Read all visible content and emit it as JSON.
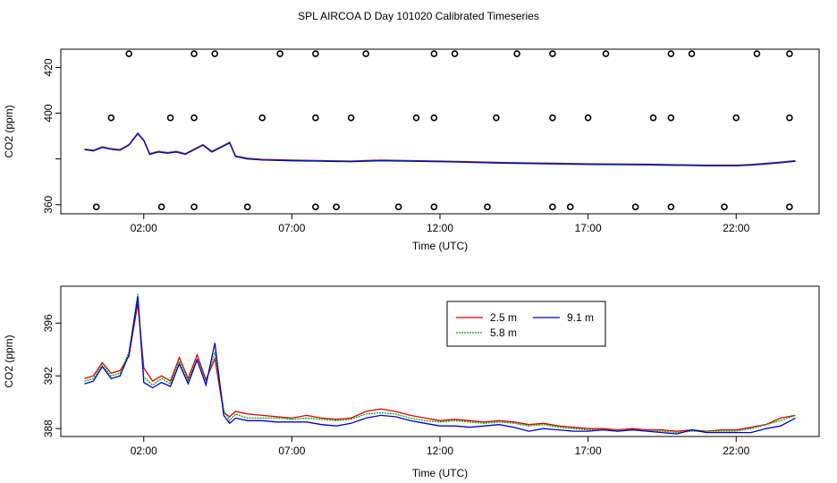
{
  "title": "SPL AIRCOA D  Day 101020  Calibrated Timeseries",
  "chart_data": [
    {
      "type": "line",
      "panel": "top",
      "xlabel": "Time (UTC)",
      "ylabel": "CO2 (ppm)",
      "xlim": [
        -0.8,
        24.8
      ],
      "ylim": [
        356,
        428
      ],
      "xticks": [
        2,
        7,
        12,
        17,
        22
      ],
      "xtick_labels": [
        "02:00",
        "07:00",
        "12:00",
        "17:00",
        "22:00"
      ],
      "yticks": [
        360,
        380,
        400,
        420
      ],
      "ytick_labels": [
        "360",
        "",
        "400",
        "420"
      ],
      "series": [
        {
          "name": "2.5 m",
          "color": "#dd0000",
          "offset": 0.3
        },
        {
          "name": "5.8 m",
          "color": "#00aa00",
          "offset": 0.15
        },
        {
          "name": "9.1 m",
          "color": "#0000cc",
          "offset": 0.0
        }
      ],
      "base_curve": {
        "x": [
          0.0,
          0.3,
          0.6,
          0.9,
          1.2,
          1.5,
          1.8,
          2.0,
          2.2,
          2.5,
          2.8,
          3.1,
          3.4,
          3.7,
          4.0,
          4.3,
          4.6,
          4.9,
          5.1,
          5.5,
          6.0,
          7.0,
          8.0,
          9.0,
          10.0,
          11.0,
          12.0,
          13.0,
          14.0,
          15.0,
          16.0,
          17.0,
          18.0,
          19.0,
          20.0,
          21.0,
          22.0,
          22.5,
          23.0,
          23.5,
          24.0
        ],
        "y": [
          384,
          383.5,
          385,
          384.2,
          383.8,
          386,
          391,
          388,
          382,
          383,
          382.5,
          383,
          382,
          384,
          386,
          383,
          385,
          387,
          381,
          380,
          379.5,
          379.2,
          379,
          378.8,
          379.2,
          379,
          378.8,
          378.5,
          378.2,
          378,
          377.8,
          377.6,
          377.5,
          377.4,
          377.2,
          377,
          377,
          377.3,
          377.8,
          378.3,
          379
        ]
      },
      "markers": {
        "y_high": 426,
        "y_mid": 398,
        "y_low": 359,
        "high_x": [
          1.5,
          3.7,
          4.4,
          6.6,
          7.8,
          9.5,
          11.8,
          12.5,
          14.6,
          15.8,
          17.6,
          19.8,
          20.5,
          22.7,
          23.8
        ],
        "mid_x": [
          0.9,
          2.9,
          3.7,
          6.0,
          7.8,
          9.0,
          11.2,
          11.8,
          13.9,
          15.8,
          17.0,
          19.2,
          19.8,
          22.0,
          23.8
        ],
        "low_x": [
          0.4,
          2.6,
          3.7,
          5.5,
          7.8,
          8.5,
          10.6,
          11.8,
          13.6,
          15.8,
          16.4,
          18.6,
          19.8,
          21.6,
          23.8
        ]
      }
    },
    {
      "type": "line",
      "panel": "bottom",
      "xlabel": "Time (UTC)",
      "ylabel": "CO2 (ppm)",
      "xlim": [
        -0.8,
        24.8
      ],
      "ylim": [
        387.4,
        398.8
      ],
      "xticks": [
        2,
        7,
        12,
        17,
        22
      ],
      "xtick_labels": [
        "02:00",
        "07:00",
        "12:00",
        "17:00",
        "22:00"
      ],
      "yticks": [
        388,
        392,
        396
      ],
      "ytick_labels": [
        "388",
        "392",
        "396"
      ],
      "legend": [
        "2.5 m",
        "9.1 m",
        "5.8 m"
      ],
      "legend_placement": "top-center",
      "series": [
        {
          "name": "2.5 m",
          "color": "#dd0000"
        },
        {
          "name": "5.8 m",
          "color": "#00aa00"
        },
        {
          "name": "9.1 m",
          "color": "#0000cc"
        }
      ],
      "x": [
        0.0,
        0.3,
        0.6,
        0.9,
        1.2,
        1.5,
        1.8,
        2.0,
        2.3,
        2.6,
        2.9,
        3.2,
        3.5,
        3.8,
        4.1,
        4.4,
        4.7,
        4.9,
        5.1,
        5.5,
        6.0,
        6.5,
        7.0,
        7.5,
        8.0,
        8.5,
        9.0,
        9.5,
        10.0,
        10.5,
        11.0,
        11.5,
        12.0,
        12.5,
        13.0,
        13.5,
        14.0,
        14.5,
        15.0,
        15.5,
        16.0,
        16.5,
        17.0,
        17.5,
        18.0,
        18.5,
        19.0,
        19.5,
        20.0,
        20.5,
        21.0,
        21.5,
        22.0,
        22.5,
        23.0,
        23.5,
        24.0
      ],
      "values_2_5m": [
        391.8,
        392,
        393,
        392.2,
        392.4,
        393.5,
        397.5,
        392.6,
        391.6,
        392,
        391.6,
        393.4,
        391.8,
        393.6,
        391.7,
        393.3,
        389.2,
        388.9,
        389.3,
        389.1,
        389.0,
        388.9,
        388.8,
        389.0,
        388.8,
        388.7,
        388.8,
        389.3,
        389.5,
        389.3,
        389.0,
        388.8,
        388.6,
        388.7,
        388.6,
        388.5,
        388.6,
        388.5,
        388.3,
        388.4,
        388.2,
        388.1,
        388.0,
        388.0,
        387.9,
        388.0,
        387.9,
        387.9,
        387.8,
        387.9,
        387.8,
        387.9,
        387.9,
        388.1,
        388.3,
        388.8,
        389.0
      ],
      "values_5_8m": [
        391.6,
        391.8,
        392.8,
        392.0,
        392.2,
        393.8,
        398.2,
        391.9,
        391.3,
        391.8,
        391.4,
        393.1,
        391.6,
        393.3,
        391.5,
        393.8,
        389.4,
        388.6,
        389.1,
        388.8,
        388.8,
        388.8,
        388.7,
        388.8,
        388.7,
        388.6,
        388.7,
        389.1,
        389.2,
        389.1,
        388.8,
        388.6,
        388.5,
        388.6,
        388.5,
        388.4,
        388.5,
        388.4,
        388.2,
        388.3,
        388.1,
        388.0,
        387.9,
        387.9,
        387.8,
        387.9,
        387.8,
        387.8,
        387.7,
        387.8,
        387.8,
        387.8,
        387.8,
        388.0,
        388.3,
        388.6,
        389.0
      ],
      "values_9_1m": [
        391.4,
        391.6,
        392.7,
        391.8,
        392.0,
        393.6,
        398.0,
        391.5,
        391.1,
        391.5,
        391.2,
        392.9,
        391.4,
        393.2,
        391.3,
        394.5,
        389.0,
        388.4,
        388.8,
        388.6,
        388.6,
        388.5,
        388.5,
        388.5,
        388.3,
        388.2,
        388.4,
        388.8,
        389.0,
        388.9,
        388.6,
        388.4,
        388.2,
        388.2,
        388.1,
        388.2,
        388.3,
        388.1,
        387.8,
        388.0,
        387.9,
        387.8,
        387.8,
        387.9,
        387.8,
        387.9,
        387.8,
        387.7,
        387.6,
        387.9,
        387.7,
        387.7,
        387.7,
        387.7,
        388.0,
        388.2,
        388.8
      ]
    }
  ]
}
